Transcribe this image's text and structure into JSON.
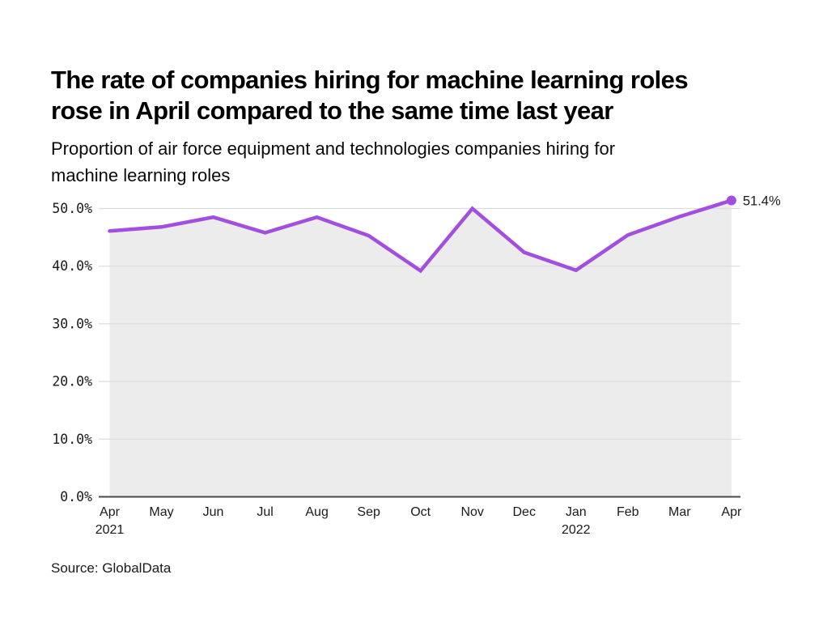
{
  "header": {
    "title_lines": [
      "The rate of companies hiring for machine learning roles",
      "rose in April compared to the same time last year"
    ],
    "subtitle_lines": [
      "Proportion of air force equipment and technologies companies hiring for",
      "machine learning roles"
    ]
  },
  "footer": {
    "source_label": "Source: GlobalData"
  },
  "chart_data": {
    "type": "area",
    "title": "The rate of companies hiring for machine learning roles rose in April compared to the same time last year",
    "subtitle": "Proportion of air force equipment and technologies companies hiring for machine learning roles",
    "categories": [
      {
        "label": "Apr",
        "year": "2021"
      },
      {
        "label": "May"
      },
      {
        "label": "Jun"
      },
      {
        "label": "Jul"
      },
      {
        "label": "Aug"
      },
      {
        "label": "Sep"
      },
      {
        "label": "Oct"
      },
      {
        "label": "Nov"
      },
      {
        "label": "Dec"
      },
      {
        "label": "Jan",
        "year": "2022"
      },
      {
        "label": "Feb"
      },
      {
        "label": "Mar"
      },
      {
        "label": "Apr"
      }
    ],
    "values": [
      46.1,
      46.8,
      48.5,
      45.8,
      48.5,
      45.3,
      39.2,
      50.0,
      42.4,
      39.3,
      45.4,
      48.6,
      51.4
    ],
    "unit": "%",
    "end_label": "51.4%",
    "y_ticks": [
      {
        "value": 0,
        "label": "0.0%"
      },
      {
        "value": 10,
        "label": "10.0%"
      },
      {
        "value": 20,
        "label": "20.0%"
      },
      {
        "value": 30,
        "label": "30.0%"
      },
      {
        "value": 40,
        "label": "40.0%"
      },
      {
        "value": 50,
        "label": "50.0%"
      }
    ],
    "ylim": [
      0,
      54
    ],
    "grid": true,
    "legend": false,
    "colors": {
      "line": "#a24fdf",
      "area_fill": "#ececec",
      "grid_line": "#dcdcdc",
      "axis_line": "#4a4a4a",
      "text": "#1a1a1a"
    }
  }
}
